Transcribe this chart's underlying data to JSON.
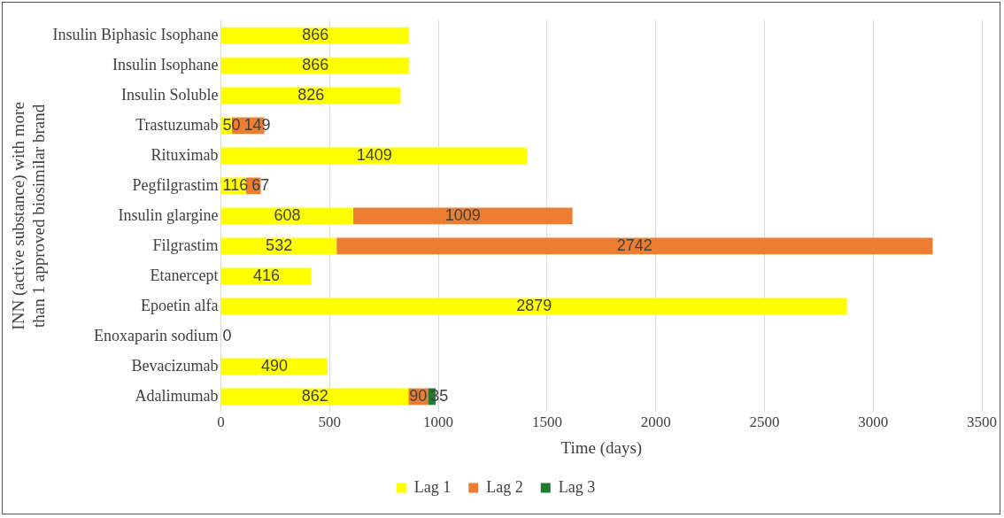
{
  "chart_data": {
    "type": "bar",
    "orientation": "horizontal",
    "stacked": true,
    "xlabel": "Time (days)",
    "ylabel": "INN (active substance) with more than 1 approved biosimilar brand",
    "categories": [
      "Insulin Biphasic Isophane",
      "Insulin Isophane",
      "Insulin Soluble",
      "Trastuzumab",
      "Rituximab",
      "Pegfilgrastim",
      "Insulin glargine",
      "Filgrastim",
      "Etanercept",
      "Epoetin alfa",
      "Enoxaparin sodium",
      "Bevacizumab",
      "Adalimumab"
    ],
    "series": [
      {
        "name": "Lag 1",
        "color": "#ffff00",
        "values": [
          866,
          866,
          826,
          50,
          1409,
          116,
          608,
          532,
          416,
          2879,
          0,
          490,
          862
        ]
      },
      {
        "name": "Lag 2",
        "color": "#ed7d31",
        "values": [
          null,
          null,
          null,
          149,
          null,
          67,
          1009,
          2742,
          null,
          null,
          null,
          null,
          90
        ]
      },
      {
        "name": "Lag 3",
        "color": "#1e7a2e",
        "values": [
          null,
          null,
          null,
          null,
          null,
          null,
          null,
          null,
          null,
          null,
          null,
          null,
          35
        ]
      }
    ],
    "xlim": [
      0,
      3500
    ],
    "xticks": [
      0,
      500,
      1000,
      1500,
      2000,
      2500,
      3000,
      3500
    ],
    "grid": "x",
    "legend": "bottom",
    "data_labels": true
  }
}
